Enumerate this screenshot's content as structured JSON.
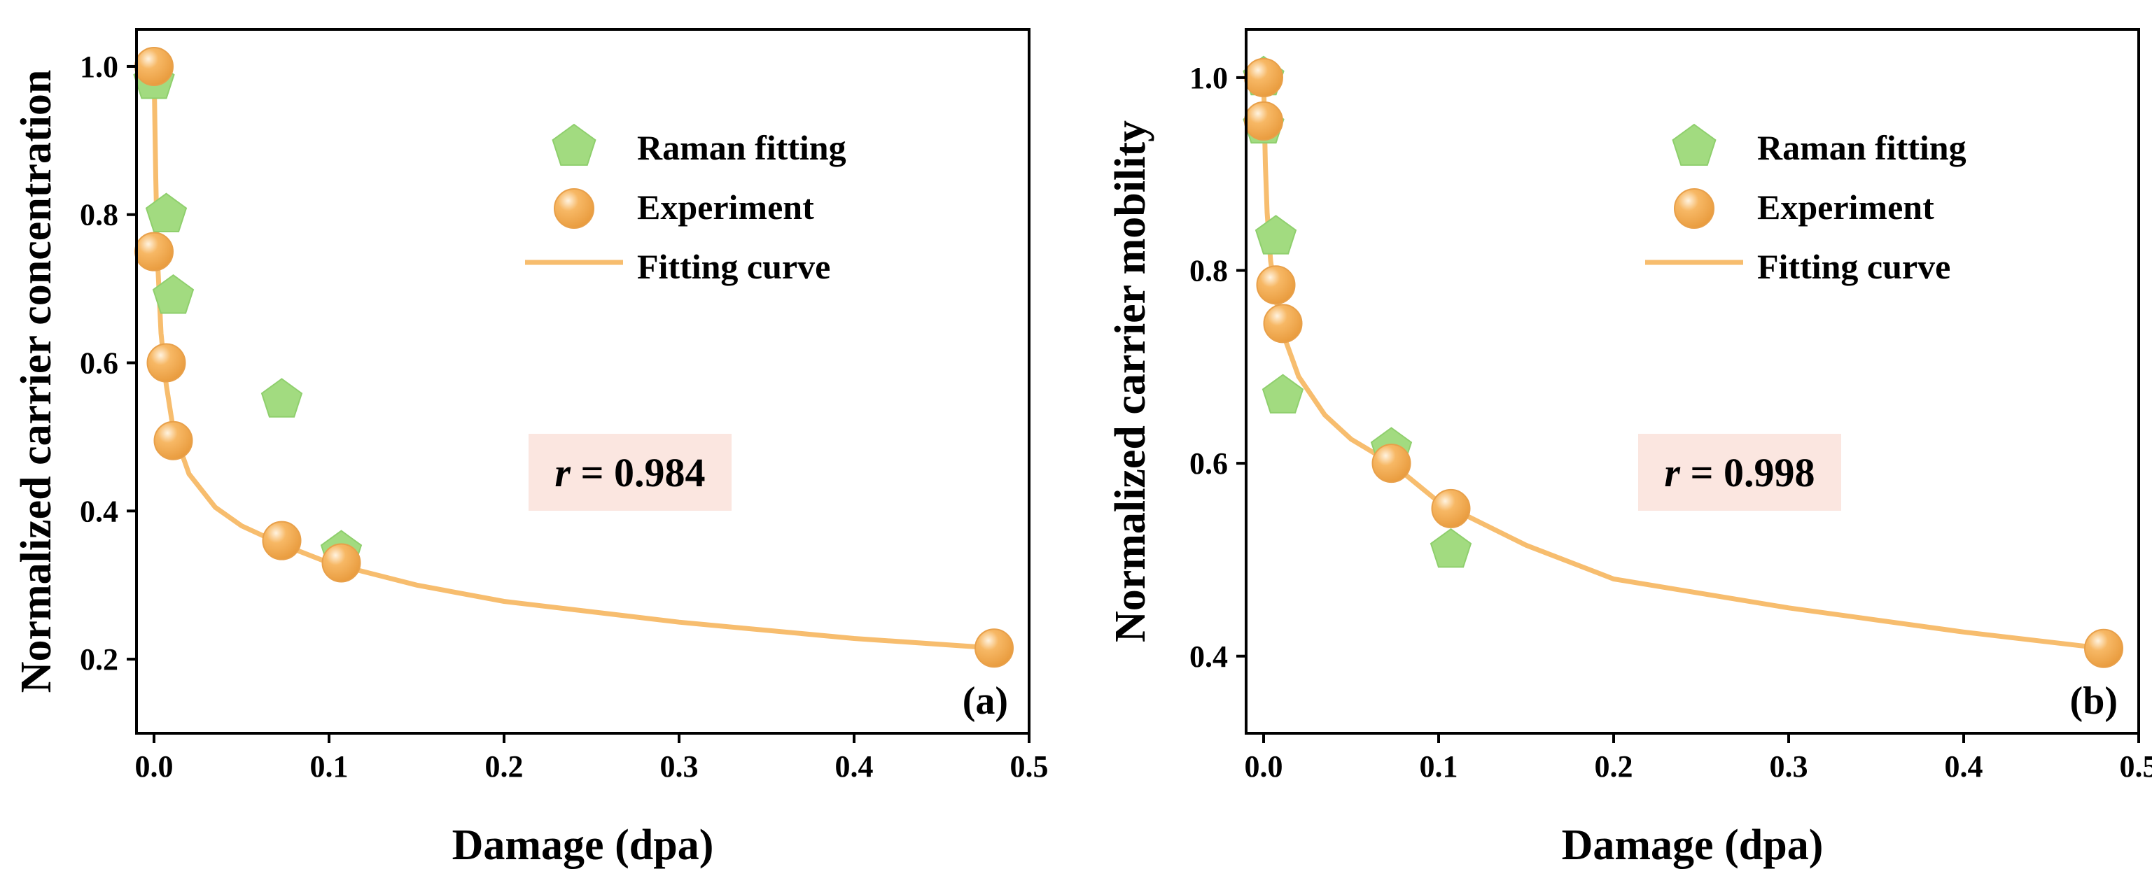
{
  "colors": {
    "raman": "#a2db80",
    "raman_stroke": "#8fcf6d",
    "experiment": "#f7b865",
    "experiment_highlight": "#fff3e0",
    "curve": "#f7bd6e",
    "r_box": "#fbe6e0"
  },
  "chart_data": [
    {
      "type": "scatter",
      "panel_label": "(a)",
      "xlabel": "Damage (dpa)",
      "ylabel": "Normalized carrier concentration",
      "xlim": [
        -0.01,
        0.5
      ],
      "ylim": [
        0.1,
        1.05
      ],
      "xticks": [
        0.0,
        0.1,
        0.2,
        0.3,
        0.4,
        0.5
      ],
      "xtick_labels": [
        "0.0",
        "0.1",
        "0.2",
        "0.3",
        "0.4",
        "0.5"
      ],
      "yticks": [
        0.2,
        0.4,
        0.6,
        0.8,
        1.0
      ],
      "ytick_labels": [
        "0.2",
        "0.4",
        "0.6",
        "0.8",
        "1.0"
      ],
      "legend": [
        "Raman fitting",
        "Experiment",
        "Fitting curve"
      ],
      "annotation": {
        "italic": "r",
        "rest": " = 0.984"
      },
      "series": [
        {
          "name": "Raman fitting",
          "marker": "pentagon",
          "x": [
            0.0,
            0.007,
            0.011,
            0.073,
            0.107
          ],
          "y": [
            0.98,
            0.8,
            0.69,
            0.55,
            0.345
          ]
        },
        {
          "name": "Experiment",
          "marker": "sphere",
          "x": [
            0.0,
            0.0,
            0.007,
            0.011,
            0.073,
            0.107,
            0.48
          ],
          "y": [
            1.0,
            0.75,
            0.6,
            0.495,
            0.36,
            0.33,
            0.215
          ]
        },
        {
          "name": "Fitting curve",
          "marker": "line",
          "x": [
            0.0,
            0.0005,
            0.001,
            0.002,
            0.004,
            0.007,
            0.011,
            0.02,
            0.035,
            0.05,
            0.073,
            0.1,
            0.15,
            0.2,
            0.3,
            0.4,
            0.48
          ],
          "y": [
            1.0,
            0.92,
            0.85,
            0.74,
            0.64,
            0.57,
            0.51,
            0.45,
            0.405,
            0.38,
            0.355,
            0.33,
            0.3,
            0.278,
            0.25,
            0.228,
            0.215
          ]
        }
      ]
    },
    {
      "type": "scatter",
      "panel_label": "(b)",
      "xlabel": "Damage (dpa)",
      "ylabel": "Normalized carrier mobility",
      "xlim": [
        -0.01,
        0.5
      ],
      "ylim": [
        0.32,
        1.05
      ],
      "xticks": [
        0.0,
        0.1,
        0.2,
        0.3,
        0.4,
        0.5
      ],
      "xtick_labels": [
        "0.0",
        "0.1",
        "0.2",
        "0.3",
        "0.4",
        "0.5"
      ],
      "yticks": [
        0.4,
        0.6,
        0.8,
        1.0
      ],
      "ytick_labels": [
        "0.4",
        "0.6",
        "0.8",
        "1.0"
      ],
      "legend": [
        "Raman fitting",
        "Experiment",
        "Fitting curve"
      ],
      "annotation": {
        "italic": "r",
        "rest": " = 0.998"
      },
      "series": [
        {
          "name": "Raman fitting",
          "marker": "pentagon",
          "x": [
            0.0,
            0.0,
            0.007,
            0.011,
            0.073,
            0.107
          ],
          "y": [
            1.0,
            0.95,
            0.835,
            0.67,
            0.615,
            0.51
          ]
        },
        {
          "name": "Experiment",
          "marker": "sphere",
          "x": [
            0.0,
            0.0,
            0.007,
            0.011,
            0.073,
            0.107,
            0.48
          ],
          "y": [
            1.0,
            0.955,
            0.785,
            0.745,
            0.6,
            0.553,
            0.408
          ]
        },
        {
          "name": "Fitting curve",
          "marker": "line",
          "x": [
            0.0,
            0.0005,
            0.001,
            0.002,
            0.004,
            0.007,
            0.011,
            0.02,
            0.035,
            0.05,
            0.073,
            0.1,
            0.15,
            0.2,
            0.3,
            0.4,
            0.48
          ],
          "y": [
            1.0,
            0.95,
            0.91,
            0.86,
            0.81,
            0.77,
            0.735,
            0.69,
            0.65,
            0.625,
            0.6,
            0.56,
            0.515,
            0.48,
            0.45,
            0.425,
            0.408
          ]
        }
      ]
    }
  ]
}
